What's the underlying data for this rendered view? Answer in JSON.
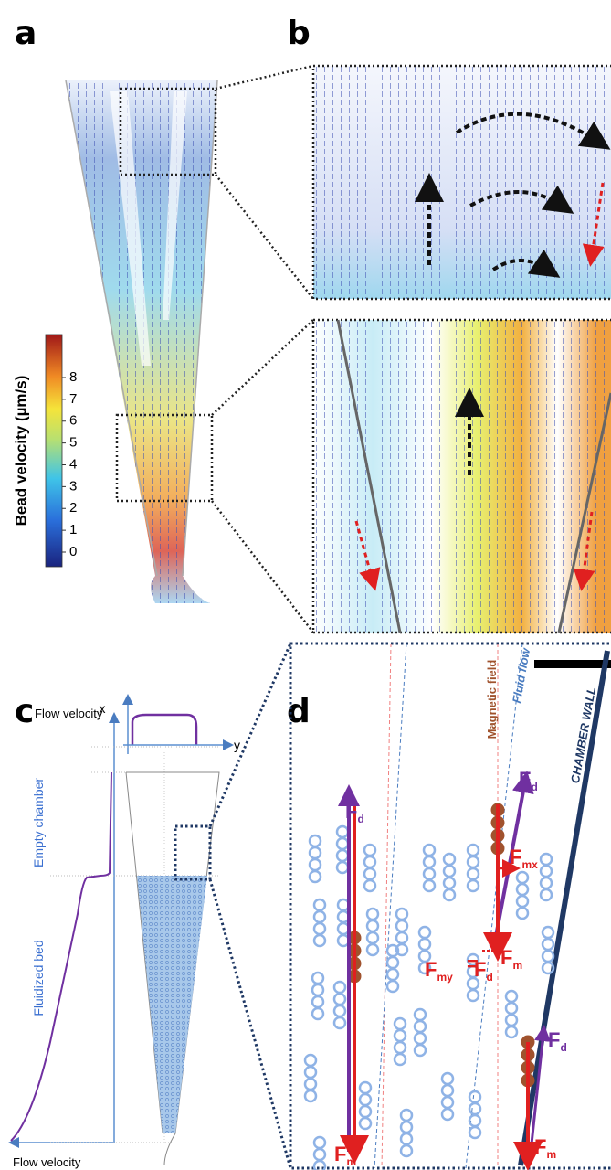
{
  "panel_a": {
    "label": "a",
    "colorbar": {
      "title": "Bead velocity (µm/s)",
      "lim": [
        0,
        8
      ],
      "ticks": [
        0,
        1,
        2,
        3,
        4,
        5,
        6,
        7,
        8
      ]
    }
  },
  "panel_b": {
    "label": "b"
  },
  "panel_c": {
    "label": "c",
    "top_axis_title": "Flow velocity",
    "x_axis": "x",
    "y_axis": "y",
    "upper_region": "Empty chamber",
    "lower_region": "Fluidized bed",
    "bottom_axis_title": "Flow velocity"
  },
  "panel_d": {
    "label": "d",
    "magnetic_field": "Magnetic field",
    "fluid_flow": "Fluid flow",
    "wall": "CHAMBER WALL",
    "forces": [
      {
        "symbol": "F",
        "subscript": "d",
        "color": "#7030a0"
      },
      {
        "symbol": "F",
        "subscript": "m",
        "color": "#e02020"
      },
      {
        "symbol": "F",
        "subscript": "d",
        "color": "#7030a0"
      },
      {
        "symbol": "F",
        "subscript": "mx",
        "color": "#e02020"
      },
      {
        "symbol": "F",
        "subscript": "my",
        "color": "#e02020"
      },
      {
        "symbol": "=",
        "color": "#e02020"
      },
      {
        "symbol": "F",
        "subscript": "d",
        "color": "#e02020"
      },
      {
        "symbol": "F",
        "subscript": "m",
        "color": "#e02020"
      },
      {
        "symbol": "F",
        "subscript": "d",
        "color": "#7030a0"
      },
      {
        "symbol": "F",
        "subscript": "m",
        "color": "#e02020"
      }
    ]
  }
}
